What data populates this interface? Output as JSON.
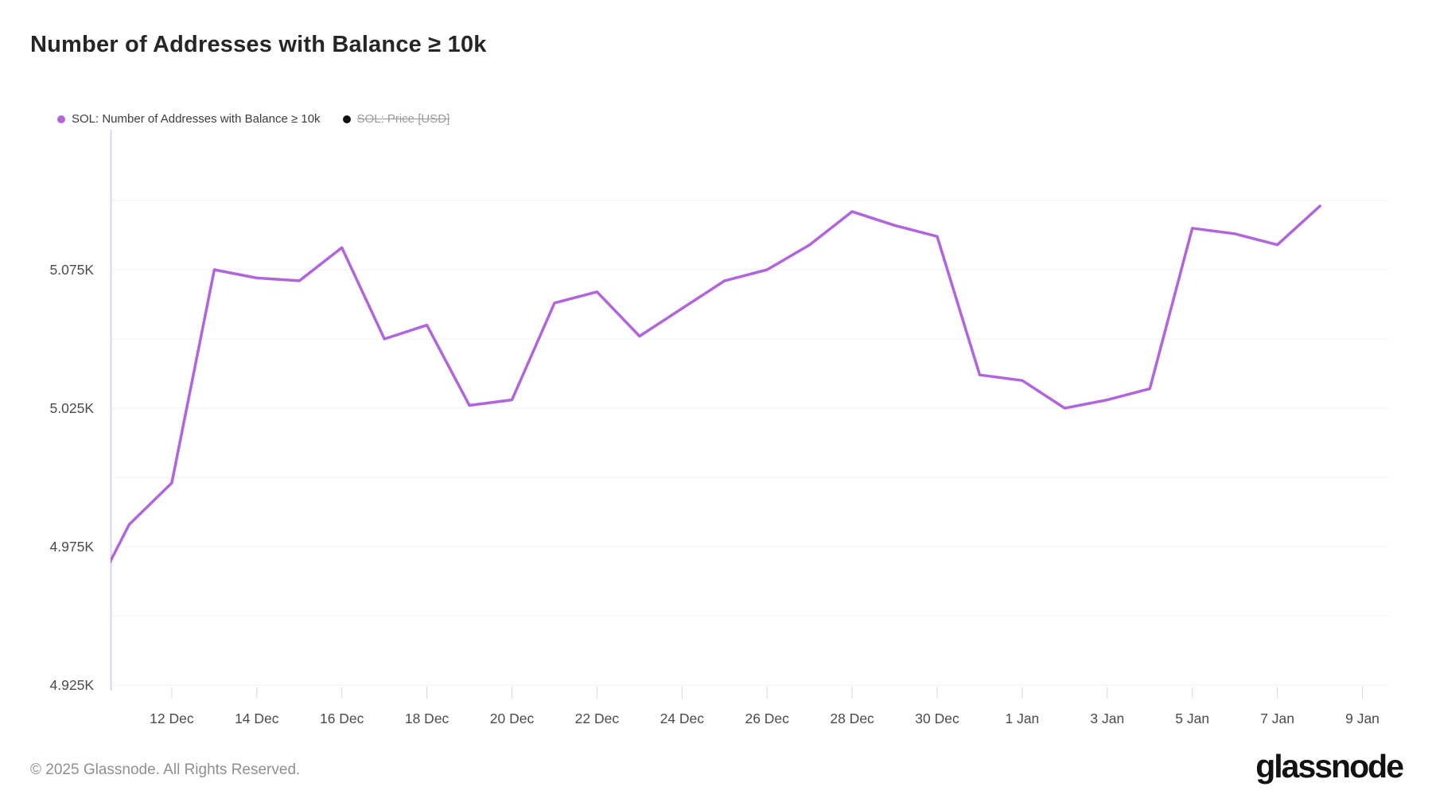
{
  "title": "Number of Addresses with Balance ≥ 10k",
  "legend": {
    "series": [
      {
        "label": "SOL: Number of Addresses with Balance ≥ 10k",
        "color": "#b065dc",
        "disabled": false
      },
      {
        "label": "SOL: Price [USD]",
        "color": "#111111",
        "disabled": true
      }
    ]
  },
  "chart_data": {
    "type": "line",
    "title": "Number of Addresses with Balance ≥ 10k",
    "series_name": "SOL: Number of Addresses with Balance ≥ 10k",
    "x": [
      "10 Dec",
      "11 Dec",
      "12 Dec",
      "13 Dec",
      "14 Dec",
      "15 Dec",
      "16 Dec",
      "17 Dec",
      "18 Dec",
      "19 Dec",
      "20 Dec",
      "21 Dec",
      "22 Dec",
      "23 Dec",
      "24 Dec",
      "25 Dec",
      "26 Dec",
      "27 Dec",
      "28 Dec",
      "29 Dec",
      "30 Dec",
      "31 Dec",
      "1 Jan",
      "2 Jan",
      "3 Jan",
      "4 Jan",
      "5 Jan",
      "6 Jan",
      "7 Jan",
      "8 Jan"
    ],
    "values": [
      4953,
      4983,
      4998,
      5075,
      5072,
      5071,
      5083,
      5050,
      5055,
      5026,
      5028,
      5063,
      5067,
      5051,
      5061,
      5071,
      5075,
      5084,
      5096,
      5091,
      5087,
      5037,
      5035,
      5025,
      5028,
      5032,
      5090,
      5088,
      5084,
      5098
    ],
    "x_tick_labels": [
      "12 Dec",
      "14 Dec",
      "16 Dec",
      "18 Dec",
      "20 Dec",
      "22 Dec",
      "24 Dec",
      "26 Dec",
      "28 Dec",
      "30 Dec",
      "1 Jan",
      "3 Jan",
      "5 Jan",
      "7 Jan",
      "9 Jan"
    ],
    "y_ticks": [
      {
        "value": 4925,
        "label": "4.925K"
      },
      {
        "value": 4975,
        "label": "4.975K"
      },
      {
        "value": 5025,
        "label": "5.025K"
      },
      {
        "value": 5075,
        "label": "5.075K"
      }
    ],
    "ylim": [
      4925,
      5125
    ],
    "grid_step": 25,
    "grid": true,
    "legend_position": "top-left",
    "line_color": "#b065dc",
    "grid_color": "#f1f1f1",
    "axis_line_color": "#e4cff2",
    "tick_color": "#d8d8d8",
    "tick_label_color": "#4b4b4b"
  },
  "footer": {
    "copyright": "© 2025 Glassnode. All Rights Reserved.",
    "logo_text": "glassnode"
  }
}
